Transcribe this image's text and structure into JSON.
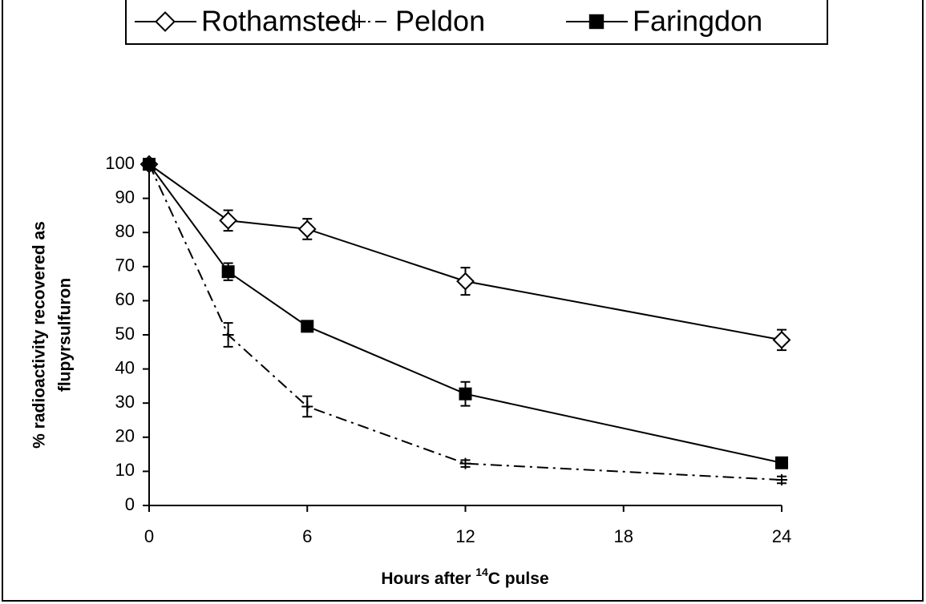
{
  "chart_data": {
    "type": "line",
    "x": [
      0,
      3,
      6,
      12,
      24
    ],
    "xlim": [
      0,
      24
    ],
    "xticks": [
      0,
      6,
      12,
      18,
      24
    ],
    "ylim": [
      0,
      100
    ],
    "yticks": [
      0,
      10,
      20,
      30,
      40,
      50,
      60,
      70,
      80,
      90,
      100
    ],
    "xlabel": [
      "Hours after ",
      "14",
      "C pulse"
    ],
    "ylabel": [
      "% radioactivity recovered as",
      "flupyrsulfuron"
    ],
    "legend": "top",
    "series": [
      {
        "name": "Rothamsted",
        "color": "#000000",
        "marker": "diamond",
        "line_style": "solid",
        "values": [
          100,
          83.5,
          81,
          65.7,
          48.5
        ],
        "errors": [
          0.5,
          3,
          3,
          4,
          3
        ]
      },
      {
        "name": "Peldon",
        "color": "#000000",
        "marker": "plus",
        "line_style": "dash-dot",
        "values": [
          100,
          50,
          29,
          12.3,
          7.5
        ],
        "errors": [
          0.5,
          3.5,
          3,
          1,
          1
        ]
      },
      {
        "name": "Faringdon",
        "color": "#000000",
        "marker": "square",
        "line_style": "solid",
        "values": [
          100,
          68.5,
          52.5,
          32.7,
          12.5
        ],
        "errors": [
          0.5,
          2.5,
          1.5,
          3.5,
          1
        ]
      }
    ]
  }
}
